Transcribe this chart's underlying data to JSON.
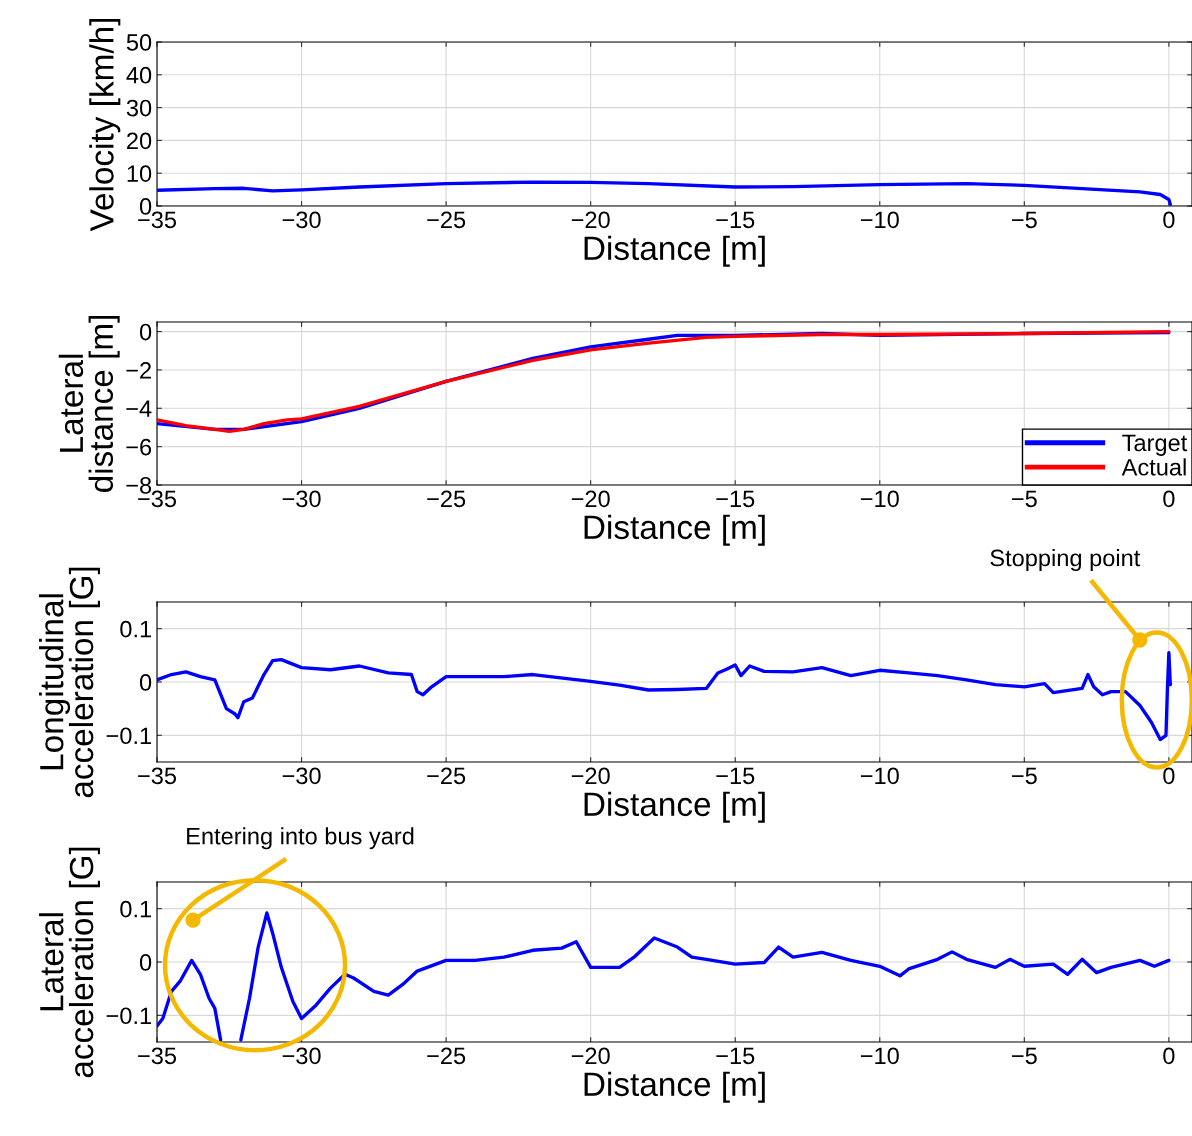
{
  "chart_data": [
    {
      "type": "line",
      "ylabel": "Velocity [km/h]",
      "xlabel": "Distance [m]",
      "xlim": [
        -35,
        0.8
      ],
      "xticks": [
        -35,
        -30,
        -25,
        -20,
        -15,
        -10,
        -5,
        0
      ],
      "ylim": [
        0,
        50
      ],
      "yticks": [
        0,
        10,
        20,
        30,
        40,
        50
      ],
      "grid": true,
      "series": [
        {
          "color": "#0000ff",
          "x": [
            -35,
            -33,
            -32,
            -31,
            -30,
            -28,
            -25,
            -22,
            -20,
            -18,
            -15,
            -13,
            -10,
            -7,
            -5,
            -3,
            -1,
            -0.3,
            0,
            0.05
          ],
          "values": [
            4.8,
            5.3,
            5.4,
            4.6,
            4.9,
            5.8,
            6.8,
            7.3,
            7.2,
            6.8,
            5.8,
            5.9,
            6.5,
            6.8,
            6.3,
            5.3,
            4.3,
            3.5,
            2.0,
            0.5
          ]
        }
      ]
    },
    {
      "type": "line",
      "ylabel": "Lateral\ndistance [m]",
      "xlabel": "Distance [m]",
      "xlim": [
        -35,
        0.8
      ],
      "xticks": [
        -35,
        -30,
        -25,
        -20,
        -15,
        -10,
        -5,
        0
      ],
      "ylim": [
        -8,
        0.5
      ],
      "yticks": [
        -8,
        -6,
        -4,
        -2,
        0
      ],
      "grid": true,
      "legend": "bottom right",
      "series": [
        {
          "name": "Target",
          "color": "#0000ff",
          "x": [
            -35,
            -33,
            -32,
            -30,
            -28,
            -25,
            -22,
            -20,
            -18,
            -17,
            -15,
            -12,
            -10,
            -5,
            0
          ],
          "values": [
            -4.8,
            -5.1,
            -5.1,
            -4.7,
            -4.0,
            -2.6,
            -1.4,
            -0.8,
            -0.4,
            -0.2,
            -0.2,
            -0.1,
            -0.2,
            -0.1,
            -0.05
          ]
        },
        {
          "name": "Actual",
          "color": "#ff0000",
          "x": [
            -35,
            -34,
            -33,
            -32.5,
            -32,
            -31.3,
            -30.5,
            -30,
            -28,
            -25,
            -22,
            -20,
            -18,
            -16,
            -15,
            -12,
            -10,
            -5,
            0
          ],
          "values": [
            -4.6,
            -4.9,
            -5.1,
            -5.2,
            -5.1,
            -4.8,
            -4.6,
            -4.55,
            -3.9,
            -2.6,
            -1.5,
            -0.95,
            -0.6,
            -0.3,
            -0.25,
            -0.15,
            -0.15,
            -0.1,
            0.0
          ]
        }
      ]
    },
    {
      "type": "line",
      "ylabel": "Longitudinal\nacceleration [G]",
      "xlabel": "Distance [m]",
      "xlim": [
        -35,
        0.8
      ],
      "xticks": [
        -35,
        -30,
        -25,
        -20,
        -15,
        -10,
        -5,
        0
      ],
      "ylim": [
        -0.15,
        0.15
      ],
      "yticks": [
        -0.1,
        0,
        0.1
      ],
      "grid": true,
      "annotations": [
        "Stopping point"
      ],
      "series": [
        {
          "color": "#0000ff",
          "x": [
            -35,
            -34.5,
            -34,
            -33.5,
            -33,
            -32.6,
            -32.3,
            -32.2,
            -32,
            -31.7,
            -31.3,
            -31,
            -30.7,
            -30,
            -29,
            -28,
            -27,
            -26.2,
            -26,
            -25.8,
            -25.5,
            -25,
            -23,
            -22,
            -20,
            -19,
            -18,
            -17,
            -16,
            -15.6,
            -15.3,
            -15,
            -14.8,
            -14.5,
            -14,
            -13,
            -12,
            -11,
            -10,
            -9,
            -8,
            -7,
            -6,
            -5,
            -4.3,
            -4,
            -3,
            -2.8,
            -2.6,
            -2.3,
            -2,
            -1.5,
            -1,
            -0.6,
            -0.3,
            -0.1,
            -0.05,
            0,
            0.05
          ],
          "values": [
            0.004,
            0.014,
            0.019,
            0.01,
            0.004,
            -0.05,
            -0.06,
            -0.067,
            -0.037,
            -0.03,
            0.014,
            0.04,
            0.042,
            0.027,
            0.023,
            0.03,
            0.017,
            0.014,
            -0.018,
            -0.024,
            -0.009,
            0.01,
            0.01,
            0.014,
            0.001,
            -0.006,
            -0.015,
            -0.014,
            -0.012,
            0.017,
            0.024,
            0.032,
            0.012,
            0.03,
            0.02,
            0.019,
            0.027,
            0.012,
            0.022,
            0.017,
            0.012,
            0.004,
            -0.005,
            -0.009,
            -0.003,
            -0.02,
            -0.012,
            0.014,
            -0.009,
            -0.024,
            -0.018,
            -0.018,
            -0.044,
            -0.076,
            -0.108,
            -0.1,
            -0.012,
            0.055,
            -0.005
          ]
        }
      ]
    },
    {
      "type": "line",
      "ylabel": "Lateral\nacceleration [G]",
      "xlabel": "Distance [m]",
      "xlim": [
        -35,
        0.8
      ],
      "xticks": [
        -35,
        -30,
        -25,
        -20,
        -15,
        -10,
        -5,
        0
      ],
      "ylim": [
        -0.15,
        0.15
      ],
      "yticks": [
        -0.1,
        0,
        0.1
      ],
      "grid": true,
      "annotations": [
        "Entering into bus yard"
      ],
      "series": [
        {
          "color": "#0000ff",
          "x": [
            -35,
            -34.8,
            -34.5,
            -34.2,
            -33.8,
            -33.5,
            -33.2,
            -33,
            -32.8,
            -32.4,
            -32.1,
            -31.8,
            -31.5,
            -31.2,
            -31,
            -30.7,
            -30.3,
            -30,
            -29.5,
            -29,
            -28.5,
            -28.2,
            -27.5,
            -27,
            -26.5,
            -26,
            -25,
            -24,
            -23,
            -22,
            -21,
            -20.5,
            -20,
            -19,
            -18.5,
            -17.8,
            -17,
            -16.5,
            -16,
            -15,
            -14,
            -13.5,
            -13,
            -12,
            -11,
            -10,
            -9.3,
            -9,
            -8,
            -7.5,
            -7,
            -6,
            -5.5,
            -5,
            -4,
            -3.5,
            -3,
            -2.5,
            -2,
            -1,
            -0.5,
            0
          ],
          "values": [
            -0.12,
            -0.106,
            -0.055,
            -0.036,
            0.003,
            -0.023,
            -0.068,
            -0.087,
            -0.146,
            null,
            -0.146,
            -0.068,
            0.028,
            0.092,
            0.054,
            -0.01,
            -0.074,
            -0.106,
            -0.081,
            -0.049,
            -0.023,
            -0.03,
            -0.055,
            -0.062,
            -0.042,
            -0.017,
            0.003,
            0.003,
            0.009,
            0.022,
            0.026,
            0.038,
            -0.01,
            -0.01,
            0.009,
            0.045,
            0.028,
            0.009,
            0.005,
            -0.004,
            -0.001,
            0.028,
            0.009,
            0.018,
            0.003,
            -0.008,
            -0.026,
            -0.013,
            0.005,
            0.019,
            0.005,
            -0.01,
            0.005,
            -0.008,
            -0.004,
            -0.023,
            0.005,
            -0.02,
            -0.01,
            0.003,
            -0.008,
            0.003
          ]
        }
      ]
    }
  ]
}
